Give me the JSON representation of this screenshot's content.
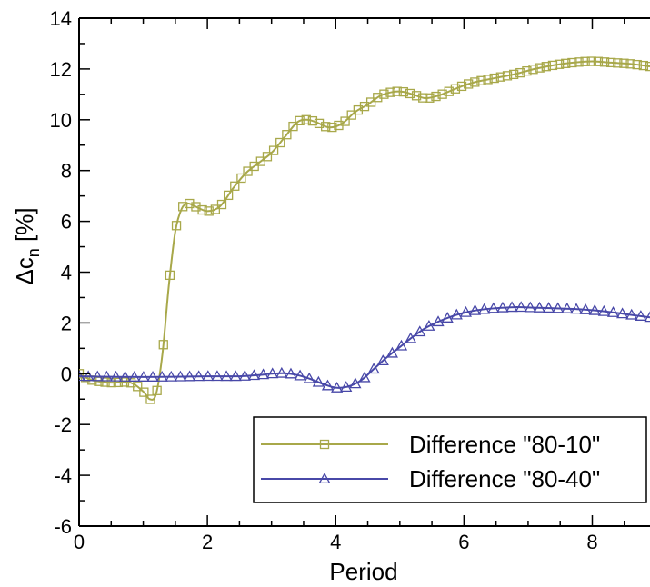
{
  "chart_data": {
    "type": "line",
    "xlabel": "Period",
    "ylabel_main": "Δc",
    "ylabel_sub": "n",
    "ylabel_unit": " [%]",
    "xlim": [
      0,
      8.9
    ],
    "ylim": [
      -6,
      14
    ],
    "xticks": [
      0,
      2,
      4,
      6,
      8
    ],
    "yticks": [
      -6,
      -4,
      -2,
      0,
      2,
      4,
      6,
      8,
      10,
      12,
      14
    ],
    "legend_position": "bottom-right",
    "series": [
      {
        "name": "Difference \"80-10\"",
        "color": "#a8a84a",
        "marker": "square",
        "x": [
          0,
          0.2,
          0.5,
          0.8,
          1.0,
          1.1,
          1.2,
          1.3,
          1.4,
          1.5,
          1.6,
          1.7,
          1.8,
          2.0,
          2.2,
          2.4,
          2.6,
          2.8,
          3.0,
          3.2,
          3.4,
          3.55,
          3.7,
          3.9,
          4.1,
          4.3,
          4.5,
          4.7,
          4.9,
          5.05,
          5.2,
          5.4,
          5.6,
          5.8,
          6.0,
          6.2,
          6.5,
          6.8,
          7.1,
          7.4,
          7.7,
          8.0,
          8.3,
          8.6,
          8.9
        ],
        "y": [
          0.0,
          -0.25,
          -0.35,
          -0.35,
          -0.7,
          -1.0,
          -0.8,
          0.8,
          3.5,
          5.6,
          6.5,
          6.7,
          6.6,
          6.4,
          6.6,
          7.3,
          7.9,
          8.3,
          8.7,
          9.3,
          9.9,
          10.0,
          9.9,
          9.7,
          9.85,
          10.3,
          10.6,
          10.95,
          11.1,
          11.1,
          11.0,
          10.85,
          10.95,
          11.15,
          11.35,
          11.5,
          11.65,
          11.8,
          12.0,
          12.15,
          12.25,
          12.3,
          12.25,
          12.2,
          12.1
        ]
      },
      {
        "name": "Difference \"80-40\"",
        "color": "#4848a8",
        "marker": "triangle",
        "x": [
          0,
          0.5,
          1.0,
          1.5,
          2.0,
          2.5,
          2.8,
          3.0,
          3.2,
          3.4,
          3.6,
          3.8,
          4.0,
          4.2,
          4.4,
          4.6,
          4.8,
          5.0,
          5.2,
          5.4,
          5.6,
          5.8,
          6.0,
          6.2,
          6.5,
          6.8,
          7.1,
          7.4,
          7.7,
          8.0,
          8.3,
          8.6,
          8.9
        ],
        "y": [
          -0.1,
          -0.12,
          -0.13,
          -0.12,
          -0.1,
          -0.1,
          -0.05,
          0.0,
          0.02,
          -0.05,
          -0.2,
          -0.4,
          -0.55,
          -0.5,
          -0.25,
          0.2,
          0.65,
          1.05,
          1.45,
          1.8,
          2.05,
          2.25,
          2.4,
          2.5,
          2.58,
          2.62,
          2.6,
          2.58,
          2.55,
          2.5,
          2.42,
          2.32,
          2.22
        ]
      }
    ]
  }
}
